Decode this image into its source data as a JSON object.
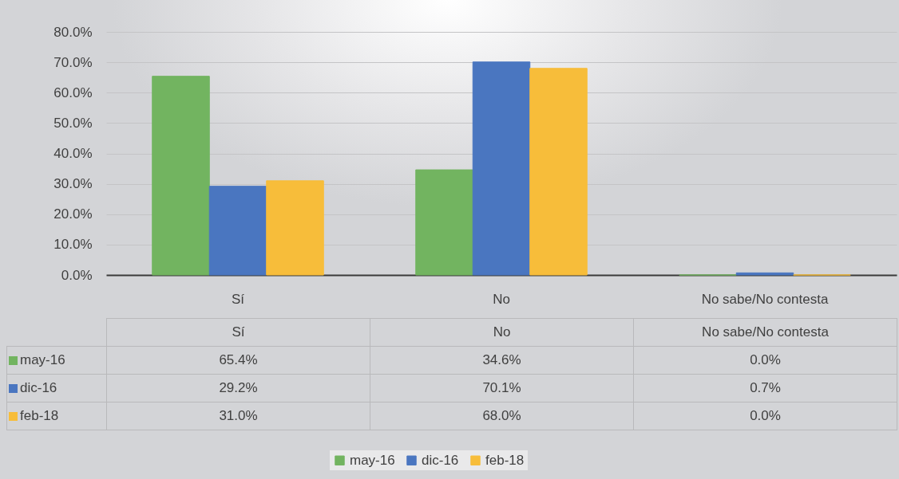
{
  "chart_data": {
    "type": "bar",
    "categories": [
      "Sí",
      "No",
      "No sabe/No contesta"
    ],
    "series": [
      {
        "name": "may-16",
        "color": "#72b460",
        "values": [
          65.4,
          34.6,
          0.0
        ],
        "value_labels": [
          "65.4%",
          "34.6%",
          "0.0%"
        ]
      },
      {
        "name": "dic-16",
        "color": "#4a76c0",
        "values": [
          29.2,
          70.1,
          0.7
        ],
        "value_labels": [
          "29.2%",
          "70.1%",
          "0.7%"
        ]
      },
      {
        "name": "feb-18",
        "color": "#f7bd3a",
        "values": [
          31.0,
          68.0,
          0.0
        ],
        "value_labels": [
          "31.0%",
          "68.0%",
          "0.0%"
        ]
      }
    ],
    "ylim": [
      0,
      80
    ],
    "yticks": [
      {
        "value": 0,
        "label": "0.0%"
      },
      {
        "value": 10,
        "label": "10.0%"
      },
      {
        "value": 20,
        "label": "20.0%"
      },
      {
        "value": 30,
        "label": "30.0%"
      },
      {
        "value": 40,
        "label": "40.0%"
      },
      {
        "value": 50,
        "label": "50.0%"
      },
      {
        "value": 60,
        "label": "60.0%"
      },
      {
        "value": 70,
        "label": "70.0%"
      },
      {
        "value": 80,
        "label": "80.0%"
      }
    ],
    "grid": "y",
    "legend": "bottom"
  }
}
